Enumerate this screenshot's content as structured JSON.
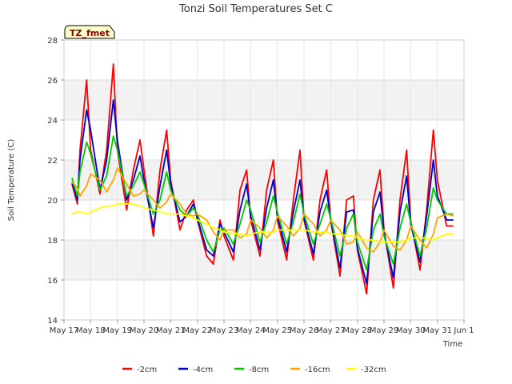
{
  "chart_data": {
    "type": "line",
    "title": "Tonzi Soil Temperatures Set C",
    "xlabel": "Time",
    "ylabel": "Soil Temperature (C)",
    "site_tag": "TZ_fmet",
    "xlim": [
      0,
      15
    ],
    "ylim": [
      14,
      28
    ],
    "x_ticks": [
      "May 17",
      "May 18",
      "May 19",
      "May 20",
      "May 21",
      "May 22",
      "May 23",
      "May 24",
      "May 25",
      "May 26",
      "May 27",
      "May 28",
      "May 29",
      "May 30",
      "May 31",
      "Jun 1"
    ],
    "y_ticks": [
      14,
      16,
      18,
      20,
      22,
      24,
      26,
      28
    ],
    "grid": true,
    "legend_position": "bottom",
    "x": [
      0.3,
      0.5,
      0.6,
      0.85,
      1.0,
      1.35,
      1.6,
      1.85,
      2.0,
      2.35,
      2.6,
      2.85,
      3.0,
      3.35,
      3.6,
      3.85,
      4.0,
      4.35,
      4.6,
      4.85,
      5.0,
      5.35,
      5.6,
      5.85,
      6.0,
      6.35,
      6.6,
      6.85,
      7.0,
      7.35,
      7.6,
      7.85,
      8.0,
      8.35,
      8.6,
      8.85,
      9.0,
      9.35,
      9.6,
      9.85,
      10.0,
      10.35,
      10.6,
      10.85,
      11.0,
      11.35,
      11.6,
      11.85,
      12.0,
      12.35,
      12.6,
      12.85,
      13.0,
      13.35,
      13.6,
      13.85,
      14.0,
      14.35,
      14.6
    ],
    "series": [
      {
        "name": "-2cm",
        "color": "#ff0000",
        "values": [
          20.8,
          19.8,
          22.5,
          26.0,
          22.5,
          20.3,
          22.5,
          26.8,
          22.5,
          19.5,
          21.5,
          23.0,
          21.5,
          18.2,
          21.5,
          23.5,
          21.0,
          18.5,
          19.5,
          20.0,
          19.0,
          17.2,
          16.8,
          19.0,
          18.2,
          17.0,
          20.5,
          21.5,
          19.0,
          17.2,
          20.5,
          22.0,
          19.0,
          17.0,
          20.0,
          22.5,
          19.0,
          17.0,
          20.0,
          21.5,
          19.0,
          16.2,
          20.0,
          20.2,
          17.5,
          15.3,
          20.0,
          21.5,
          18.5,
          15.6,
          20.0,
          22.5,
          19.0,
          16.5,
          19.5,
          23.5,
          21.0,
          18.7,
          18.7
        ]
      },
      {
        "name": "-4cm",
        "color": "#0000cc",
        "values": [
          20.9,
          20.0,
          22.0,
          24.5,
          23.5,
          20.5,
          22.0,
          25.0,
          23.0,
          20.0,
          21.0,
          22.2,
          21.0,
          18.6,
          20.7,
          22.5,
          20.8,
          18.9,
          19.2,
          19.8,
          19.1,
          17.5,
          17.2,
          18.8,
          18.4,
          17.4,
          19.5,
          20.8,
          19.2,
          17.5,
          19.6,
          21.0,
          19.2,
          17.4,
          19.4,
          21.0,
          19.1,
          17.3,
          19.4,
          20.5,
          19.0,
          16.6,
          19.4,
          19.5,
          17.6,
          15.8,
          19.4,
          20.4,
          18.4,
          16.1,
          19.4,
          21.2,
          18.8,
          16.9,
          19.2,
          22.0,
          20.2,
          19.0,
          19.0
        ]
      },
      {
        "name": "-8cm",
        "color": "#00cc00",
        "values": [
          21.1,
          20.2,
          21.4,
          22.9,
          22.3,
          20.5,
          21.2,
          23.2,
          22.5,
          20.2,
          20.7,
          21.4,
          20.8,
          19.3,
          20.0,
          21.4,
          20.5,
          19.5,
          19.2,
          19.6,
          19.3,
          18.0,
          17.4,
          18.5,
          18.6,
          17.8,
          18.8,
          20.0,
          19.5,
          17.9,
          18.9,
          20.2,
          19.4,
          17.8,
          18.9,
          20.3,
          19.3,
          17.8,
          18.8,
          19.8,
          19.1,
          17.2,
          18.6,
          19.3,
          17.9,
          16.5,
          18.5,
          19.3,
          18.2,
          16.8,
          18.6,
          19.8,
          18.9,
          17.2,
          18.6,
          20.6,
          20.0,
          19.3,
          19.3
        ]
      },
      {
        "name": "-16cm",
        "color": "#ffa500",
        "values": [
          20.9,
          20.6,
          20.2,
          20.7,
          21.3,
          21.0,
          20.4,
          21.0,
          21.6,
          20.8,
          20.2,
          20.3,
          20.5,
          20.0,
          19.6,
          19.9,
          20.3,
          19.8,
          19.3,
          19.2,
          19.3,
          19.0,
          18.4,
          18.0,
          18.5,
          18.5,
          18.1,
          18.3,
          19.0,
          18.6,
          18.1,
          18.5,
          19.2,
          18.7,
          18.2,
          18.6,
          19.3,
          18.8,
          18.2,
          18.5,
          19.0,
          18.5,
          17.8,
          17.9,
          18.4,
          17.6,
          17.4,
          17.9,
          18.5,
          17.7,
          17.5,
          18.0,
          18.7,
          18.0,
          17.6,
          18.3,
          19.1,
          19.3,
          19.2
        ]
      },
      {
        "name": "-32cm",
        "color": "#ffff00",
        "values": [
          19.3,
          19.4,
          19.4,
          19.3,
          19.4,
          19.6,
          19.7,
          19.7,
          19.8,
          19.8,
          19.8,
          19.7,
          19.6,
          19.5,
          19.4,
          19.3,
          19.3,
          19.3,
          19.2,
          19.1,
          19.0,
          18.8,
          18.6,
          18.5,
          18.4,
          18.3,
          18.3,
          18.2,
          18.3,
          18.4,
          18.4,
          18.4,
          18.5,
          18.5,
          18.5,
          18.5,
          18.5,
          18.4,
          18.4,
          18.4,
          18.3,
          18.3,
          18.2,
          18.2,
          18.1,
          18.0,
          18.0,
          17.9,
          17.9,
          17.9,
          17.9,
          18.0,
          18.1,
          18.1,
          18.1,
          18.0,
          18.1,
          18.3,
          18.3
        ]
      }
    ]
  }
}
